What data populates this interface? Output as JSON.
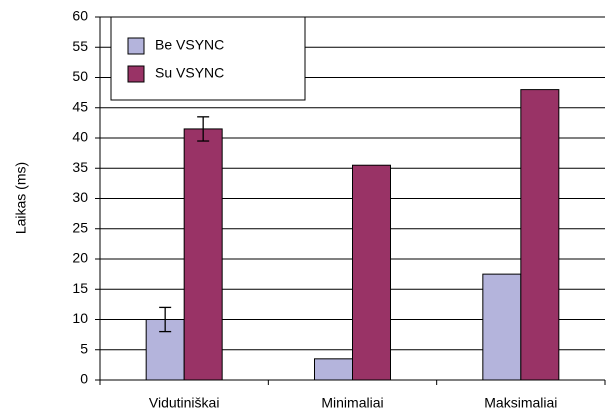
{
  "chart_data": {
    "type": "bar",
    "y_label": "Laikas (ms)",
    "categories": [
      "Vidutiniškai",
      "Minimaliai",
      "Maksimaliai"
    ],
    "series": [
      {
        "name": "Be VSYNC",
        "color": "#b4b4dc",
        "values": [
          10,
          3.5,
          17.5
        ],
        "errors": [
          2,
          null,
          null
        ]
      },
      {
        "name": "Su VSYNC",
        "color": "#993366",
        "values": [
          41.5,
          35.5,
          48
        ],
        "errors": [
          2,
          null,
          null
        ]
      }
    ],
    "ylim": [
      0,
      60
    ],
    "yticks": [
      0,
      5,
      10,
      15,
      20,
      25,
      30,
      35,
      40,
      45,
      50,
      55,
      60
    ],
    "grid": true,
    "legend": "upper-left"
  }
}
